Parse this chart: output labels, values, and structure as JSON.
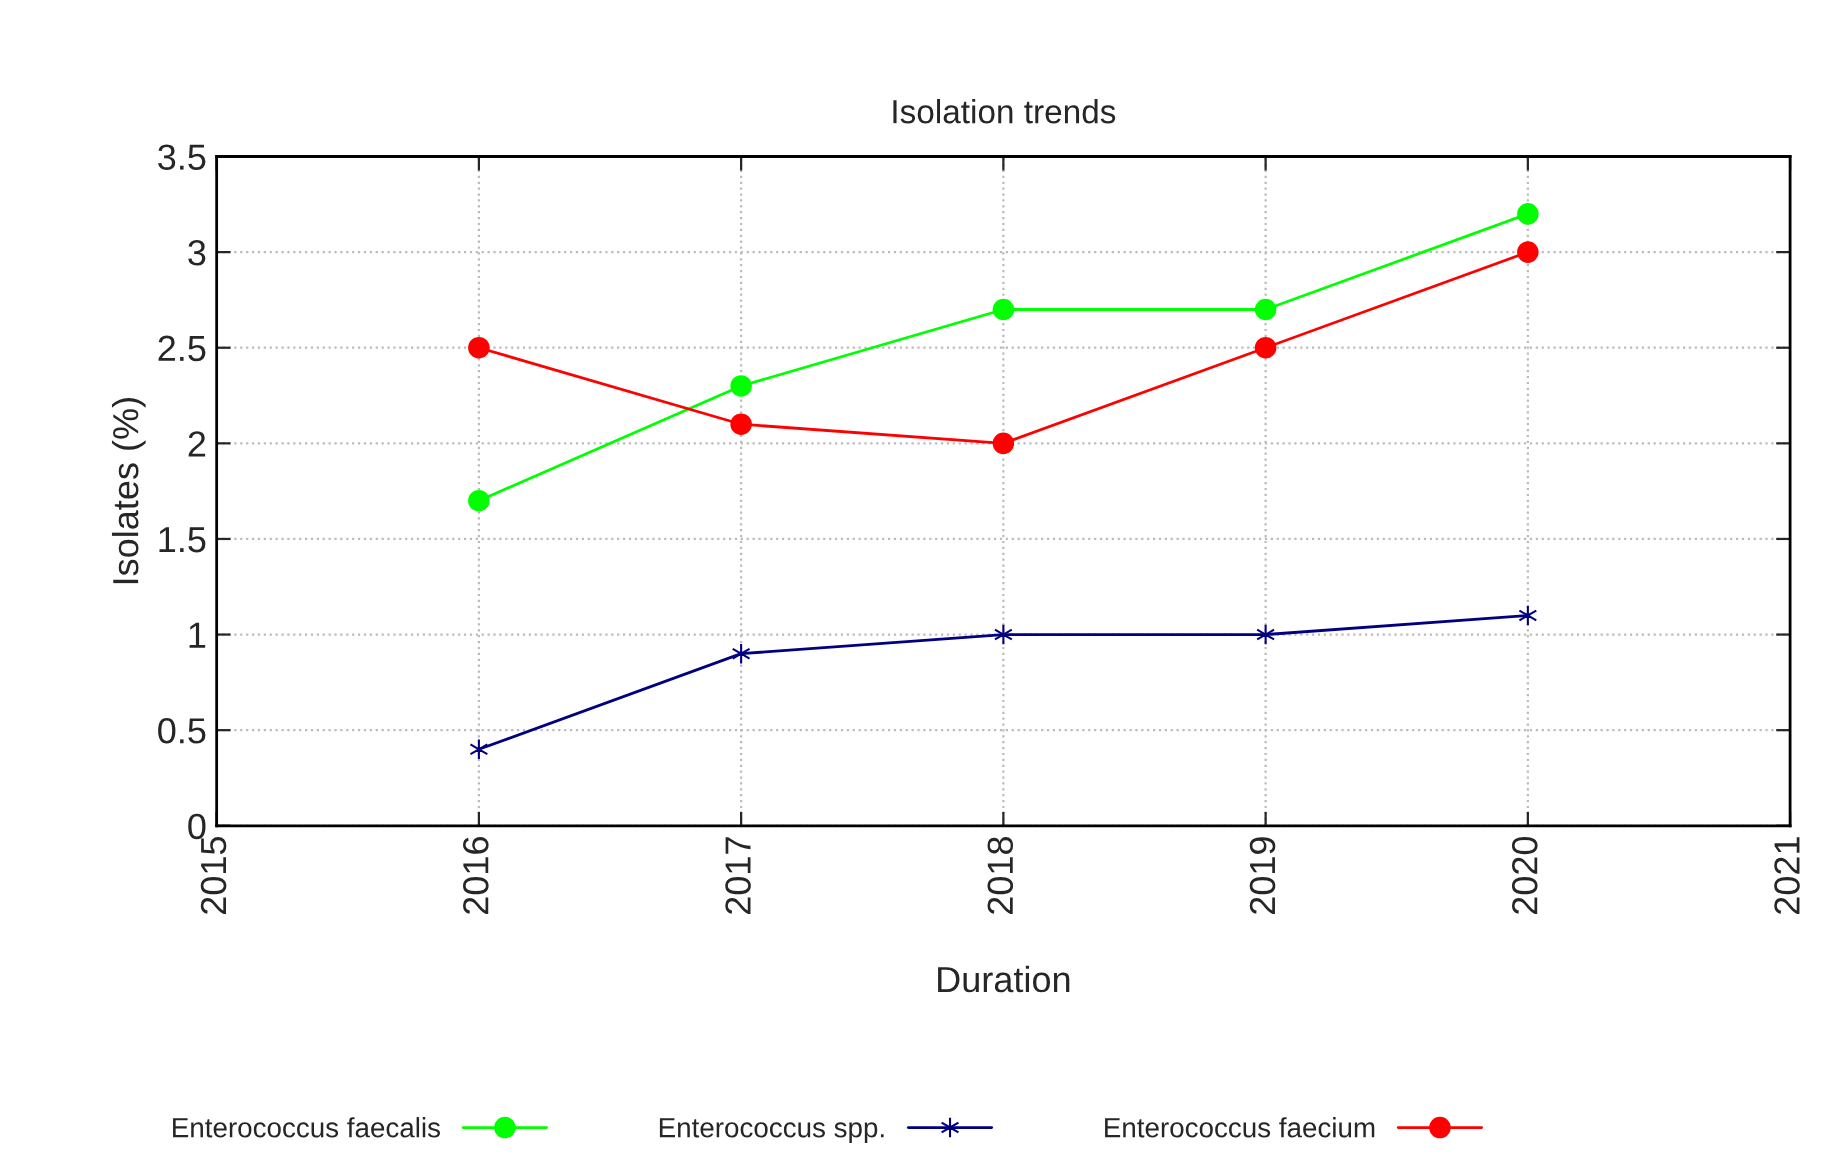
{
  "chart_data": {
    "type": "line",
    "title": "Isolation trends",
    "xlabel": "Duration",
    "ylabel": "Isolates (%)",
    "x": [
      2016,
      2017,
      2018,
      2019,
      2020
    ],
    "series": [
      {
        "name": "Enterococcus faecalis",
        "color": "#00ff00",
        "marker": "circle",
        "values": [
          1.7,
          2.3,
          2.7,
          2.7,
          3.2
        ]
      },
      {
        "name": "Enterococcus spp.",
        "color": "#000080",
        "marker": "cross",
        "values": [
          0.4,
          0.9,
          1.0,
          1.0,
          1.1
        ]
      },
      {
        "name": "Enterococcus faecium",
        "color": "#ff0000",
        "marker": "circle",
        "values": [
          2.5,
          2.1,
          2.0,
          2.5,
          3.0
        ]
      }
    ],
    "xlim": [
      2015,
      2021
    ],
    "xticks": [
      2015,
      2016,
      2017,
      2018,
      2019,
      2020,
      2021
    ],
    "ylim": [
      0,
      3.5
    ],
    "yticks": [
      0,
      0.5,
      1,
      1.5,
      2,
      2.5,
      3,
      3.5
    ],
    "grid": true,
    "legend": "bottom",
    "line_style": "solid"
  }
}
